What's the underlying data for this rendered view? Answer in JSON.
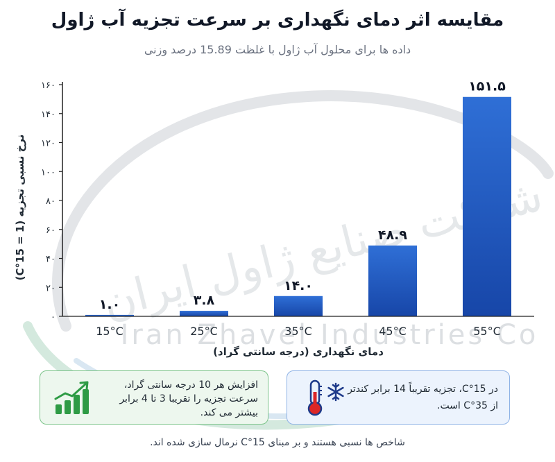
{
  "chart_data": {
    "type": "bar",
    "title": "مقایسه اثر دمای نگهداری بر سرعت تجزیه آب ژاول",
    "subtitle": "داده ها برای محلول آب ژاول با غلظت 15.89 درصد وزنی",
    "xlabel": "دمای نگهداری (درجه سانتی گراد)",
    "ylabel": "نرخ نسبی تجزیه (1 = 15°C)",
    "categories": [
      "15°C",
      "25°C",
      "35°C",
      "45°C",
      "55°C"
    ],
    "values": [
      1.0,
      3.8,
      14.0,
      48.9,
      151.5
    ],
    "value_labels": [
      "۱.۰",
      "۳.۸",
      "۱۴.۰",
      "۴۸.۹",
      "۱۵۱.۵"
    ],
    "ylim": [
      0,
      160
    ],
    "yticks": [
      0,
      20,
      40,
      60,
      80,
      100,
      120,
      140,
      160
    ],
    "ytick_labels": [
      "۰",
      "۲۰",
      "۴۰",
      "۶۰",
      "۸۰",
      "۱۰۰",
      "۱۲۰",
      "۱۴۰",
      "۱۶۰"
    ],
    "grid": false,
    "colors": {
      "bar_top": "#2f6fd6",
      "bar_bottom": "#1746a8",
      "axis": "#222222"
    }
  },
  "cards": {
    "green_text": "افزایش هر 10 درجه سانتی گراد، سرعت تجزیه را تقریبا 3 تا 4 برابر بیشتر می کند.",
    "blue_text": "در 15°C، تجزیه تقریباً 14 برابر کندتر از 35°C است.",
    "green_icon": "growth-chart-icon",
    "blue_icon": "thermometer-snowflake-icon"
  },
  "footnote": "شاخص ها نسبی هستند و بر مبنای 15°C نرمال سازی شده اند.",
  "watermark": {
    "persian": "شرکت صنایع ژاول ایران",
    "english": "Iran Zhavel Industries Co"
  }
}
